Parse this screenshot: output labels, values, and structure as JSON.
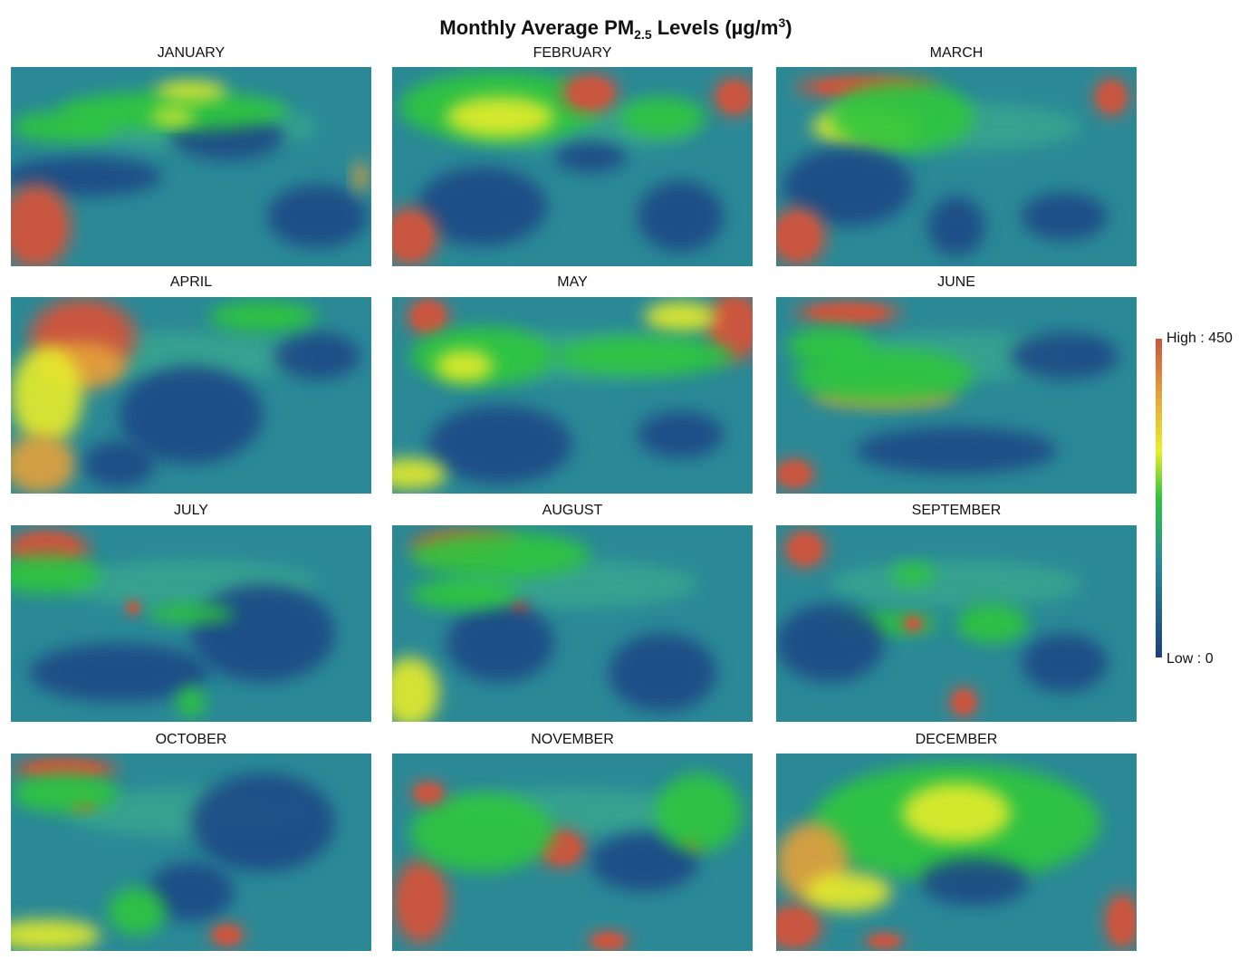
{
  "title": {
    "main": "Monthly Average PM",
    "sub": "2.5",
    "mid": " Levels (µg/m",
    "sup": "3",
    "end": ")"
  },
  "panels": [
    "JANUARY",
    "FEBRUARY",
    "MARCH",
    "APRIL",
    "MAY",
    "JUNE",
    "JULY",
    "AUGUST",
    "SEPTEMBER",
    "OCTOBER",
    "NOVEMBER",
    "DECEMBER"
  ],
  "legend": {
    "high": "High : 450",
    "low": "Low : 0"
  }
}
